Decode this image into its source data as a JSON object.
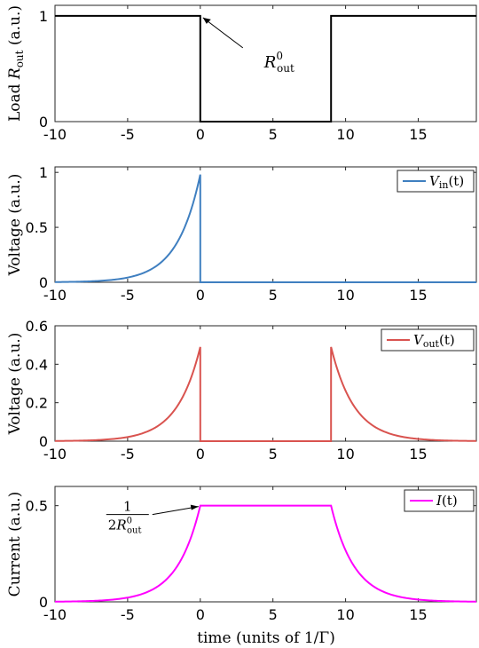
{
  "figure": {
    "xlabel": "time (units of 1/Γ)"
  },
  "chart_data": [
    {
      "type": "line",
      "id": "load",
      "ylabel": "Load R_out (a.u.)",
      "ylabel_parts": {
        "prefix": "Load ",
        "symbol": "R",
        "sub": "out",
        "suffix": " (a.u.)"
      },
      "xlim": [
        -10,
        19
      ],
      "ylim": [
        0,
        1.1
      ],
      "xticks": [
        "-10",
        "-5",
        "0",
        "5",
        "10",
        "15"
      ],
      "xtick_values": [
        -10,
        -5,
        0,
        5,
        10,
        15
      ],
      "yticks": [
        "0",
        "1"
      ],
      "ytick_values": [
        0,
        1
      ],
      "series": [
        {
          "color": "#000000",
          "model": "step",
          "x": [
            -10,
            0,
            0,
            9,
            9,
            19
          ],
          "y": [
            1,
            1,
            0,
            0,
            1,
            1
          ]
        }
      ],
      "annotations": [
        {
          "symbol": "R",
          "sup": "0",
          "sub": "out",
          "points_to": [
            0,
            1
          ]
        }
      ]
    },
    {
      "type": "line",
      "id": "vin",
      "ylabel": "Voltage (a.u.)",
      "xlim": [
        -10,
        19
      ],
      "ylim": [
        0,
        1.05
      ],
      "xticks": [
        "-10",
        "-5",
        "0",
        "5",
        "10",
        "15"
      ],
      "xtick_values": [
        -10,
        -5,
        0,
        5,
        10,
        15
      ],
      "yticks": [
        "0",
        "0.5",
        "1"
      ],
      "ytick_values": [
        0,
        0.5,
        1
      ],
      "legend": {
        "position": "top-right",
        "label": "V_in(t)",
        "symbol": "V",
        "sub": "in",
        "arg": "(t)"
      },
      "series": [
        {
          "color": "#3f7fc0",
          "model": "exp-rise-then-zero",
          "peak": 0.98,
          "peak_t": 0
        }
      ]
    },
    {
      "type": "line",
      "id": "vout",
      "ylabel": "Voltage (a.u.)",
      "xlim": [
        -10,
        19
      ],
      "ylim": [
        0,
        0.6
      ],
      "xticks": [
        "-10",
        "-5",
        "0",
        "5",
        "10",
        "15"
      ],
      "xtick_values": [
        -10,
        -5,
        0,
        5,
        10,
        15
      ],
      "yticks": [
        "0",
        "0.2",
        "0.4",
        "0.6"
      ],
      "ytick_values": [
        0,
        0.2,
        0.4,
        0.6
      ],
      "legend": {
        "position": "top-right",
        "label": "V_out(t)",
        "symbol": "V",
        "sub": "out",
        "arg": "(t)"
      },
      "series": [
        {
          "color": "#d9534f",
          "model": "two-pulses",
          "peak": 0.49,
          "t1": 0,
          "t2": 9
        }
      ]
    },
    {
      "type": "line",
      "id": "current",
      "ylabel": "Current (a.u.)",
      "xlim": [
        -10,
        19
      ],
      "ylim": [
        0,
        0.6
      ],
      "xticks": [
        "-10",
        "-5",
        "0",
        "5",
        "10",
        "15"
      ],
      "xtick_values": [
        -10,
        -5,
        0,
        5,
        10,
        15
      ],
      "yticks": [
        "0",
        "0.5"
      ],
      "ytick_values": [
        0,
        0.5
      ],
      "legend": {
        "position": "top-right",
        "label": "I(t)",
        "symbol": "I",
        "arg": "(t)"
      },
      "series": [
        {
          "color": "#ff00ff",
          "model": "rise-plateau-fall",
          "plateau": 0.5,
          "t1": 0,
          "t2": 9
        }
      ],
      "annotations": [
        {
          "frac_num": "1",
          "frac_den": "2R",
          "sup": "0",
          "sub": "out",
          "points_to": [
            0,
            0.5
          ]
        }
      ]
    }
  ]
}
